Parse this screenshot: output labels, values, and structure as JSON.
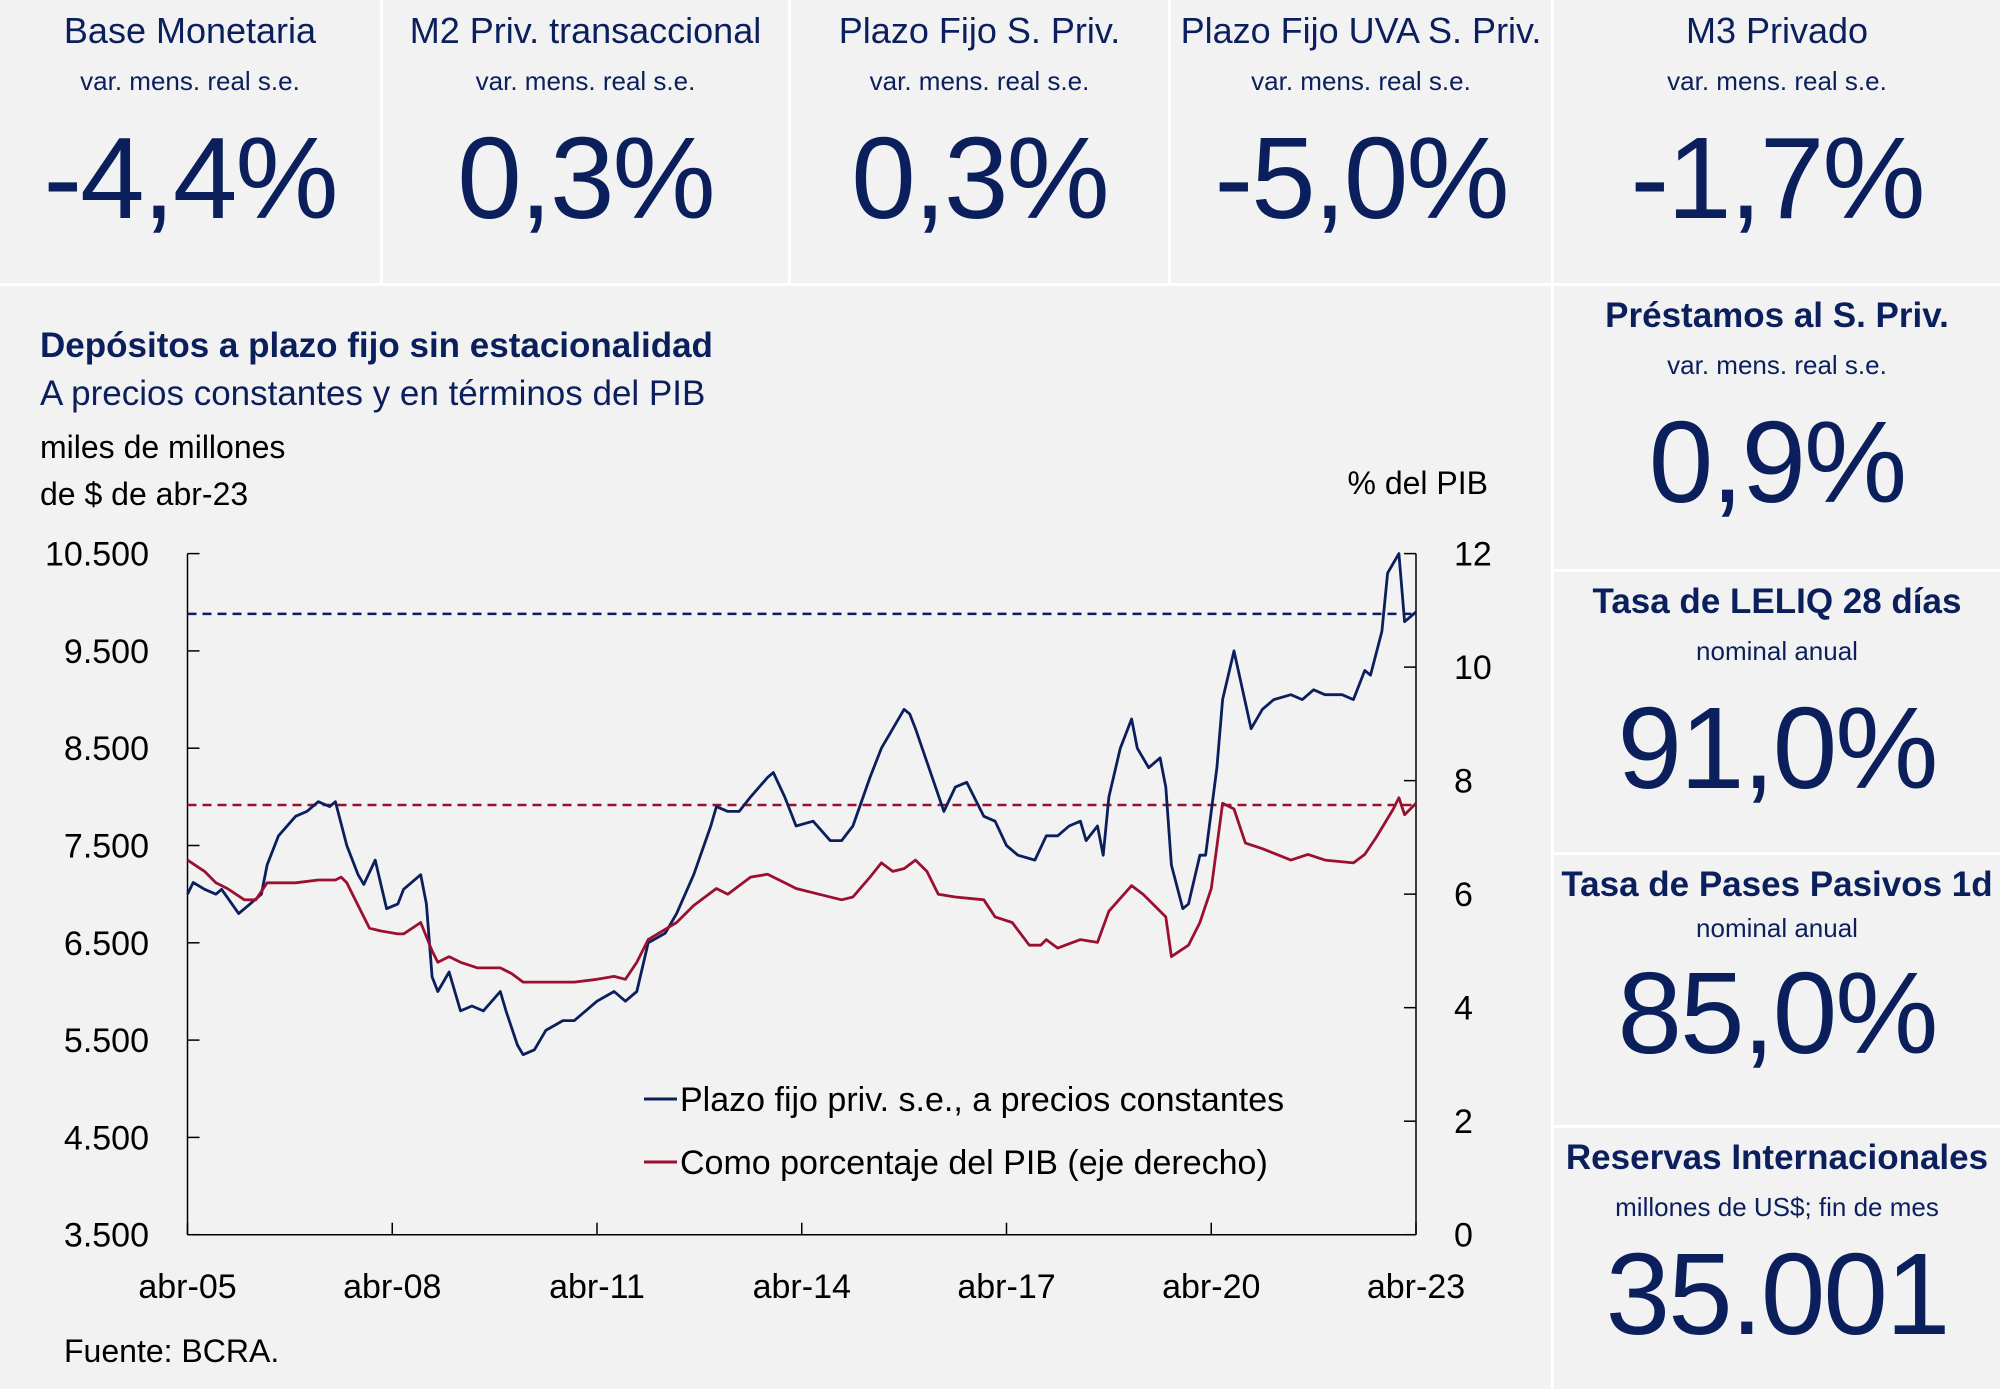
{
  "colors": {
    "navy": "#0b1f5c",
    "red": "#9b1030",
    "panel_bg": "#f2f2f2"
  },
  "top_panels": [
    {
      "title": "Base Monetaria",
      "subtitle": "var. mens. real s.e.",
      "value": "-4,4%"
    },
    {
      "title": "M2 Priv. transaccional",
      "subtitle": "var. mens. real s.e.",
      "value": "0,3%"
    },
    {
      "title": "Plazo Fijo S. Priv.",
      "subtitle": "var. mens. real s.e.",
      "value": "0,3%"
    },
    {
      "title": "Plazo Fijo UVA S. Priv.",
      "subtitle": "var. mens. real s.e.",
      "value": "-5,0%"
    },
    {
      "title": "M3 Privado",
      "subtitle": "var. mens. real s.e.",
      "value": "-1,7%"
    }
  ],
  "side_panels": [
    {
      "title": "Préstamos al S. Priv.",
      "subtitle": "var. mens. real s.e.",
      "value": "0,9%"
    },
    {
      "title": "Tasa de LELIQ 28 días",
      "subtitle": "nominal anual",
      "value": "91,0%"
    },
    {
      "title": "Tasa de Pases Pasivos 1d",
      "subtitle": "nominal anual",
      "value": "85,0%"
    },
    {
      "title": "Reservas Internacionales",
      "subtitle": "millones de US$; fin de mes",
      "value": "35.001"
    }
  ],
  "chart_data": {
    "type": "line",
    "title": "Depósitos a plazo fijo sin estacionalidad",
    "subtitle": "A precios constantes y en términos del PIB",
    "ylabel_left_line1": "miles de millones",
    "ylabel_left_line2": "de $ de abr-23",
    "ylabel_right": "% del PIB",
    "source": "Fuente: BCRA.",
    "xlim": [
      "2005-04",
      "2023-04"
    ],
    "x_ticks": [
      "abr-05",
      "abr-08",
      "abr-11",
      "abr-14",
      "abr-17",
      "abr-20",
      "abr-23"
    ],
    "ylim_left": [
      3500,
      10500
    ],
    "y_ticks_left": [
      "3.500",
      "4.500",
      "5.500",
      "6.500",
      "7.500",
      "8.500",
      "9.500",
      "10.500"
    ],
    "ylim_right": [
      0,
      12
    ],
    "y_ticks_right": [
      "0",
      "2",
      "4",
      "6",
      "8",
      "10",
      "12"
    ],
    "grid": false,
    "legend_placement": "bottom-right",
    "reference_lines": [
      {
        "axis": "left",
        "value": 9880,
        "style": "dashed",
        "color": "#0b1f5c"
      },
      {
        "axis": "right",
        "value": 7.57,
        "style": "dashed",
        "color": "#9b1030"
      }
    ],
    "series": [
      {
        "name": "Plazo fijo priv. s.e., a precios constantes",
        "axis": "left",
        "color": "#0b1f5c",
        "points": [
          [
            "2005-04",
            7000
          ],
          [
            "2005-05",
            7120
          ],
          [
            "2005-07",
            7050
          ],
          [
            "2005-09",
            7000
          ],
          [
            "2005-10",
            7050
          ],
          [
            "2006-01",
            6800
          ],
          [
            "2006-03",
            6900
          ],
          [
            "2006-05",
            7000
          ],
          [
            "2006-06",
            7300
          ],
          [
            "2006-08",
            7600
          ],
          [
            "2006-11",
            7800
          ],
          [
            "2007-01",
            7850
          ],
          [
            "2007-03",
            7950
          ],
          [
            "2007-05",
            7900
          ],
          [
            "2007-06",
            7950
          ],
          [
            "2007-08",
            7500
          ],
          [
            "2007-10",
            7200
          ],
          [
            "2007-11",
            7100
          ],
          [
            "2008-01",
            7350
          ],
          [
            "2008-02",
            7100
          ],
          [
            "2008-03",
            6850
          ],
          [
            "2008-05",
            6900
          ],
          [
            "2008-06",
            7050
          ],
          [
            "2008-09",
            7200
          ],
          [
            "2008-10",
            6900
          ],
          [
            "2008-11",
            6150
          ],
          [
            "2008-12",
            6000
          ],
          [
            "2009-02",
            6200
          ],
          [
            "2009-04",
            5800
          ],
          [
            "2009-06",
            5850
          ],
          [
            "2009-08",
            5800
          ],
          [
            "2009-11",
            6000
          ],
          [
            "2009-12",
            5800
          ],
          [
            "2010-02",
            5450
          ],
          [
            "2010-03",
            5350
          ],
          [
            "2010-05",
            5400
          ],
          [
            "2010-07",
            5600
          ],
          [
            "2010-10",
            5700
          ],
          [
            "2010-12",
            5700
          ],
          [
            "2011-02",
            5800
          ],
          [
            "2011-04",
            5900
          ],
          [
            "2011-07",
            6000
          ],
          [
            "2011-09",
            5900
          ],
          [
            "2011-11",
            6000
          ],
          [
            "2012-01",
            6500
          ],
          [
            "2012-04",
            6600
          ],
          [
            "2012-06",
            6800
          ],
          [
            "2012-09",
            7200
          ],
          [
            "2012-12",
            7700
          ],
          [
            "2013-01",
            7900
          ],
          [
            "2013-03",
            7850
          ],
          [
            "2013-05",
            7850
          ],
          [
            "2013-07",
            8000
          ],
          [
            "2013-10",
            8200
          ],
          [
            "2013-11",
            8250
          ],
          [
            "2014-01",
            8000
          ],
          [
            "2014-03",
            7700
          ],
          [
            "2014-06",
            7750
          ],
          [
            "2014-09",
            7550
          ],
          [
            "2014-11",
            7550
          ],
          [
            "2015-01",
            7700
          ],
          [
            "2015-04",
            8200
          ],
          [
            "2015-06",
            8500
          ],
          [
            "2015-08",
            8700
          ],
          [
            "2015-10",
            8900
          ],
          [
            "2015-11",
            8850
          ],
          [
            "2015-12",
            8700
          ],
          [
            "2016-05",
            7850
          ],
          [
            "2016-07",
            8100
          ],
          [
            "2016-09",
            8150
          ],
          [
            "2016-12",
            7800
          ],
          [
            "2017-02",
            7750
          ],
          [
            "2017-04",
            7500
          ],
          [
            "2017-06",
            7400
          ],
          [
            "2017-09",
            7350
          ],
          [
            "2017-11",
            7600
          ],
          [
            "2018-01",
            7600
          ],
          [
            "2018-03",
            7700
          ],
          [
            "2018-05",
            7750
          ],
          [
            "2018-06",
            7550
          ],
          [
            "2018-08",
            7700
          ],
          [
            "2018-09",
            7400
          ],
          [
            "2018-10",
            8000
          ],
          [
            "2018-12",
            8500
          ],
          [
            "2019-02",
            8800
          ],
          [
            "2019-03",
            8500
          ],
          [
            "2019-05",
            8300
          ],
          [
            "2019-07",
            8400
          ],
          [
            "2019-08",
            8100
          ],
          [
            "2019-09",
            7300
          ],
          [
            "2019-11",
            6850
          ],
          [
            "2019-12",
            6900
          ],
          [
            "2020-02",
            7400
          ],
          [
            "2020-03",
            7400
          ],
          [
            "2020-05",
            8300
          ],
          [
            "2020-06",
            9000
          ],
          [
            "2020-08",
            9500
          ],
          [
            "2020-11",
            8700
          ],
          [
            "2021-01",
            8900
          ],
          [
            "2021-03",
            9000
          ],
          [
            "2021-06",
            9050
          ],
          [
            "2021-08",
            9000
          ],
          [
            "2021-10",
            9100
          ],
          [
            "2021-12",
            9050
          ],
          [
            "2022-03",
            9050
          ],
          [
            "2022-05",
            9000
          ],
          [
            "2022-07",
            9300
          ],
          [
            "2022-08",
            9250
          ],
          [
            "2022-10",
            9700
          ],
          [
            "2022-11",
            10300
          ],
          [
            "2023-01",
            10500
          ],
          [
            "2023-02",
            9800
          ],
          [
            "2023-04",
            9900
          ]
        ]
      },
      {
        "name": "Como porcentaje del PIB (eje derecho)",
        "axis": "right",
        "color": "#9b1030",
        "points": [
          [
            "2005-04",
            6.6
          ],
          [
            "2005-07",
            6.4
          ],
          [
            "2005-09",
            6.2
          ],
          [
            "2005-11",
            6.1
          ],
          [
            "2006-02",
            5.9
          ],
          [
            "2006-04",
            5.9
          ],
          [
            "2006-06",
            6.2
          ],
          [
            "2006-11",
            6.2
          ],
          [
            "2007-03",
            6.25
          ],
          [
            "2007-06",
            6.25
          ],
          [
            "2007-07",
            6.3
          ],
          [
            "2007-08",
            6.2
          ],
          [
            "2007-10",
            5.8
          ],
          [
            "2007-12",
            5.4
          ],
          [
            "2008-02",
            5.35
          ],
          [
            "2008-05",
            5.3
          ],
          [
            "2008-06",
            5.3
          ],
          [
            "2008-09",
            5.5
          ],
          [
            "2008-11",
            5.0
          ],
          [
            "2008-12",
            4.8
          ],
          [
            "2009-02",
            4.9
          ],
          [
            "2009-04",
            4.8
          ],
          [
            "2009-07",
            4.7
          ],
          [
            "2009-11",
            4.7
          ],
          [
            "2010-01",
            4.6
          ],
          [
            "2010-03",
            4.45
          ],
          [
            "2010-07",
            4.45
          ],
          [
            "2010-12",
            4.45
          ],
          [
            "2011-04",
            4.5
          ],
          [
            "2011-07",
            4.55
          ],
          [
            "2011-09",
            4.5
          ],
          [
            "2011-11",
            4.8
          ],
          [
            "2012-01",
            5.2
          ],
          [
            "2012-06",
            5.5
          ],
          [
            "2012-09",
            5.8
          ],
          [
            "2013-01",
            6.1
          ],
          [
            "2013-03",
            6.0
          ],
          [
            "2013-07",
            6.3
          ],
          [
            "2013-10",
            6.35
          ],
          [
            "2014-01",
            6.2
          ],
          [
            "2014-03",
            6.1
          ],
          [
            "2014-07",
            6.0
          ],
          [
            "2014-11",
            5.9
          ],
          [
            "2015-01",
            5.95
          ],
          [
            "2015-04",
            6.3
          ],
          [
            "2015-06",
            6.55
          ],
          [
            "2015-08",
            6.4
          ],
          [
            "2015-10",
            6.45
          ],
          [
            "2015-12",
            6.6
          ],
          [
            "2016-02",
            6.4
          ],
          [
            "2016-04",
            6.0
          ],
          [
            "2016-07",
            5.95
          ],
          [
            "2016-12",
            5.9
          ],
          [
            "2017-02",
            5.6
          ],
          [
            "2017-05",
            5.5
          ],
          [
            "2017-08",
            5.1
          ],
          [
            "2017-10",
            5.1
          ],
          [
            "2017-11",
            5.2
          ],
          [
            "2018-01",
            5.05
          ],
          [
            "2018-05",
            5.2
          ],
          [
            "2018-08",
            5.15
          ],
          [
            "2018-10",
            5.7
          ],
          [
            "2019-02",
            6.15
          ],
          [
            "2019-04",
            6.0
          ],
          [
            "2019-06",
            5.8
          ],
          [
            "2019-08",
            5.6
          ],
          [
            "2019-09",
            4.9
          ],
          [
            "2019-12",
            5.1
          ],
          [
            "2020-02",
            5.5
          ],
          [
            "2020-04",
            6.1
          ],
          [
            "2020-06",
            7.6
          ],
          [
            "2020-08",
            7.5
          ],
          [
            "2020-10",
            6.9
          ],
          [
            "2021-01",
            6.8
          ],
          [
            "2021-06",
            6.6
          ],
          [
            "2021-09",
            6.7
          ],
          [
            "2021-12",
            6.6
          ],
          [
            "2022-05",
            6.55
          ],
          [
            "2022-07",
            6.7
          ],
          [
            "2022-09",
            7.0
          ],
          [
            "2022-12",
            7.5
          ],
          [
            "2023-01",
            7.7
          ],
          [
            "2023-02",
            7.4
          ],
          [
            "2023-04",
            7.6
          ]
        ]
      }
    ]
  }
}
